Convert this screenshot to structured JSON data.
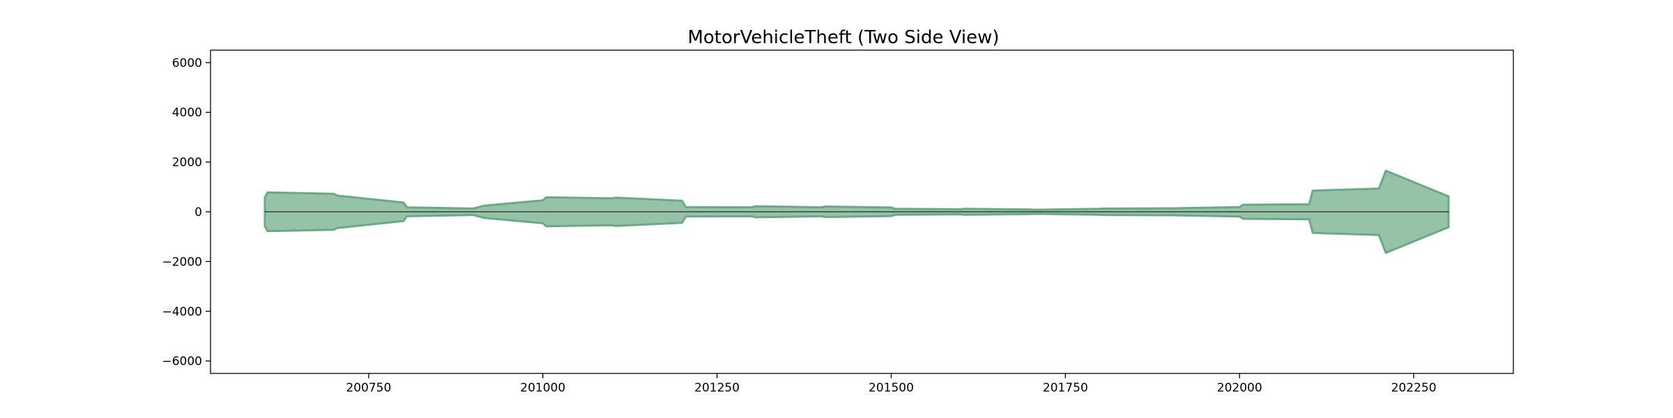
{
  "chart_data": {
    "type": "area",
    "title": "MotorVehicleTheft (Two Side View)",
    "xlabel": "",
    "ylabel": "",
    "xlim": [
      200523,
      202393
    ],
    "ylim": [
      -6500,
      6500
    ],
    "x_ticks": [
      200750,
      201000,
      201250,
      201500,
      201750,
      202000,
      202250
    ],
    "y_ticks": [
      -6000,
      -4000,
      -2000,
      0,
      2000,
      4000,
      6000
    ],
    "y_tick_labels": [
      "−6000",
      "−4000",
      "−2000",
      "0",
      "2000",
      "4000",
      "6000"
    ],
    "x_tick_labels": [
      "200750",
      "201000",
      "201250",
      "201500",
      "201750",
      "202000",
      "202250"
    ],
    "grid": false,
    "series": [
      {
        "x": [
          200601,
          200605,
          200700,
          200705,
          200800,
          200805,
          200900,
          200915,
          201000,
          201005,
          201100,
          201105,
          201200,
          201205,
          201300,
          201305,
          201400,
          201405,
          201500,
          201505,
          201600,
          201605,
          201700,
          201705,
          201800,
          201805,
          201900,
          201905,
          202000,
          202005,
          202100,
          202105,
          202200,
          202210,
          202300
        ],
        "values": [
          580,
          780,
          720,
          650,
          370,
          180,
          130,
          240,
          460,
          580,
          540,
          570,
          440,
          190,
          180,
          220,
          180,
          210,
          170,
          120,
          100,
          120,
          90,
          80,
          120,
          130,
          140,
          140,
          190,
          280,
          300,
          850,
          930,
          1650,
          620
        ]
      }
    ],
    "colors": {
      "fill": "#96c3a8",
      "stroke": "#6aa886"
    }
  }
}
